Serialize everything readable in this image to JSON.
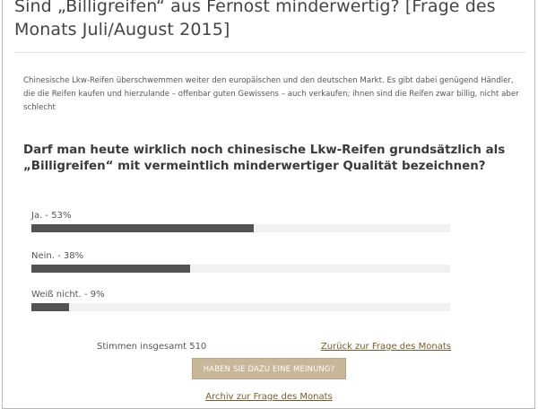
{
  "header": {
    "title": "Sind „Billigreifen“ aus Fernost minderwertig? [Frage des Monats Juli/August 2015]"
  },
  "intro": "Chinesische Lkw-Reifen überschwemmen weiter den europäischen und den deutschen Markt. Es gibt dabei genügend Händler, die die Reifen kaufen und hierzulande – offenbar guten Gewissens – auch verkaufen; ihnen sind die Reifen zwar billig, nicht aber schlecht",
  "poll": {
    "question": "Darf man heute wirklich noch chinesische Lkw-Reifen grundsätzlich als „Billigreifen“ mit vermeintlich minderwertiger Qualität bezeichnen?",
    "answers": [
      {
        "label": "Ja. - 53%",
        "percent": 53
      },
      {
        "label": "Nein. - 38%",
        "percent": 38
      },
      {
        "label": "Weiß nicht. - 9%",
        "percent": 9
      }
    ],
    "total_label": "Stimmen insgesamt 510",
    "back_link": "Zurück zur Frage des Monats",
    "opinion_button": "HABEN SIE DAZU EINE MEINUNG?",
    "archive_link": "Archiv zur Frage des Monats"
  },
  "colors": {
    "bar_fill": "#535353",
    "bar_track": "#f1f1f1",
    "button_bg": "#c8b698",
    "link": "#7a5a28"
  }
}
